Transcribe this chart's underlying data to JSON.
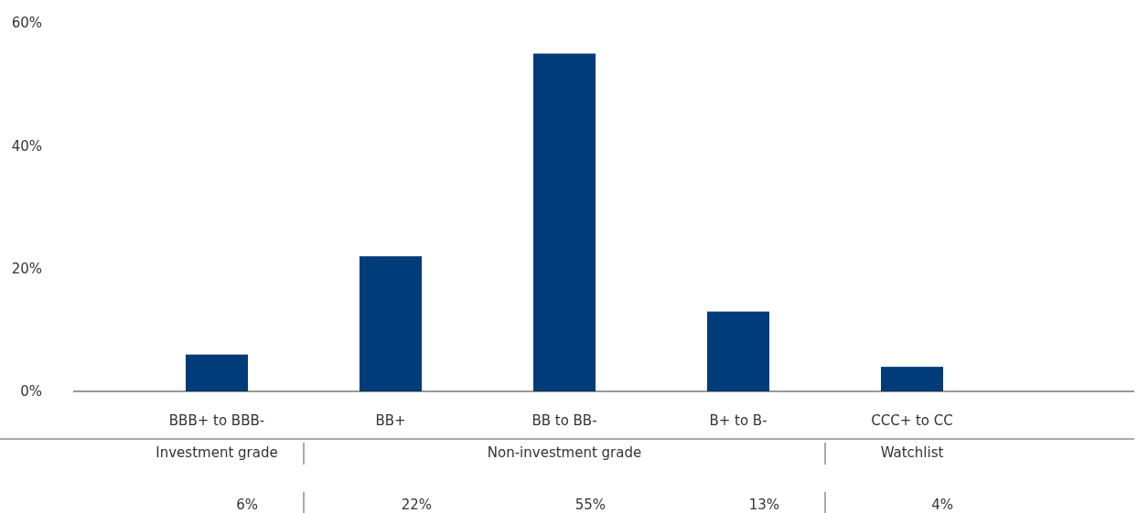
{
  "chart_data": {
    "type": "bar",
    "categories": [
      "BBB+ to BBB-",
      "BB+",
      "BB to BB-",
      "B+ to B-",
      "CCC+ to CC",
      null
    ],
    "values": [
      6,
      22,
      55,
      13,
      4,
      null
    ],
    "color": "#003b7a",
    "value_labels": [
      "6%",
      "22%",
      "55%",
      "13%",
      "4%",
      null
    ],
    "ylim": [
      0,
      60
    ],
    "yticks": [
      {
        "value": 0,
        "label": "0%"
      },
      {
        "value": 20,
        "label": "20%"
      },
      {
        "value": 40,
        "label": "40%"
      },
      {
        "value": 60,
        "label": "60%"
      }
    ],
    "annotations": [
      "Investment grade",
      "Non-investment grade",
      "Watchlist"
    ],
    "grid": false
  }
}
